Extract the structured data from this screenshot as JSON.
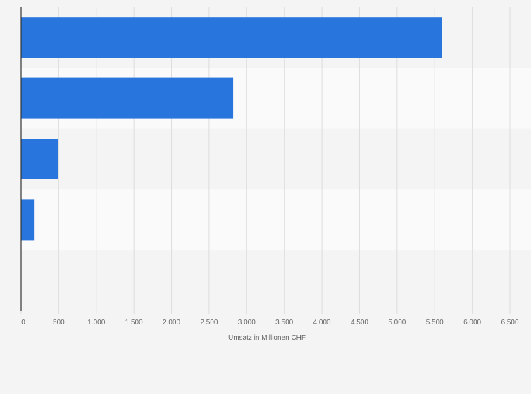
{
  "chart_data": {
    "type": "bar",
    "orientation": "horizontal",
    "title": "",
    "xlabel": "Umsatz in Millionen CHF",
    "ylabel": "",
    "categories": [
      "",
      "",
      "",
      "",
      ""
    ],
    "values": [
      5600,
      2820,
      490,
      170,
      0
    ],
    "xlim": [
      0,
      6500
    ],
    "xticks": [
      0,
      500,
      1000,
      1500,
      2000,
      2500,
      3000,
      3500,
      4000,
      4500,
      5000,
      5500,
      6000,
      6500
    ],
    "xtick_labels": [
      "0",
      "500",
      "1.000",
      "1.500",
      "2.000",
      "2.500",
      "3.000",
      "3.500",
      "4.000",
      "4.500",
      "5.000",
      "5.500",
      "6.000",
      "6.500"
    ],
    "grid": true,
    "legend": "none",
    "colors": {
      "bar": "#2876dd",
      "band_light": "#fafafa",
      "band_dark": "#f4f4f4",
      "grid": "#dddddd",
      "axis": "#333333",
      "text": "#666666"
    }
  }
}
